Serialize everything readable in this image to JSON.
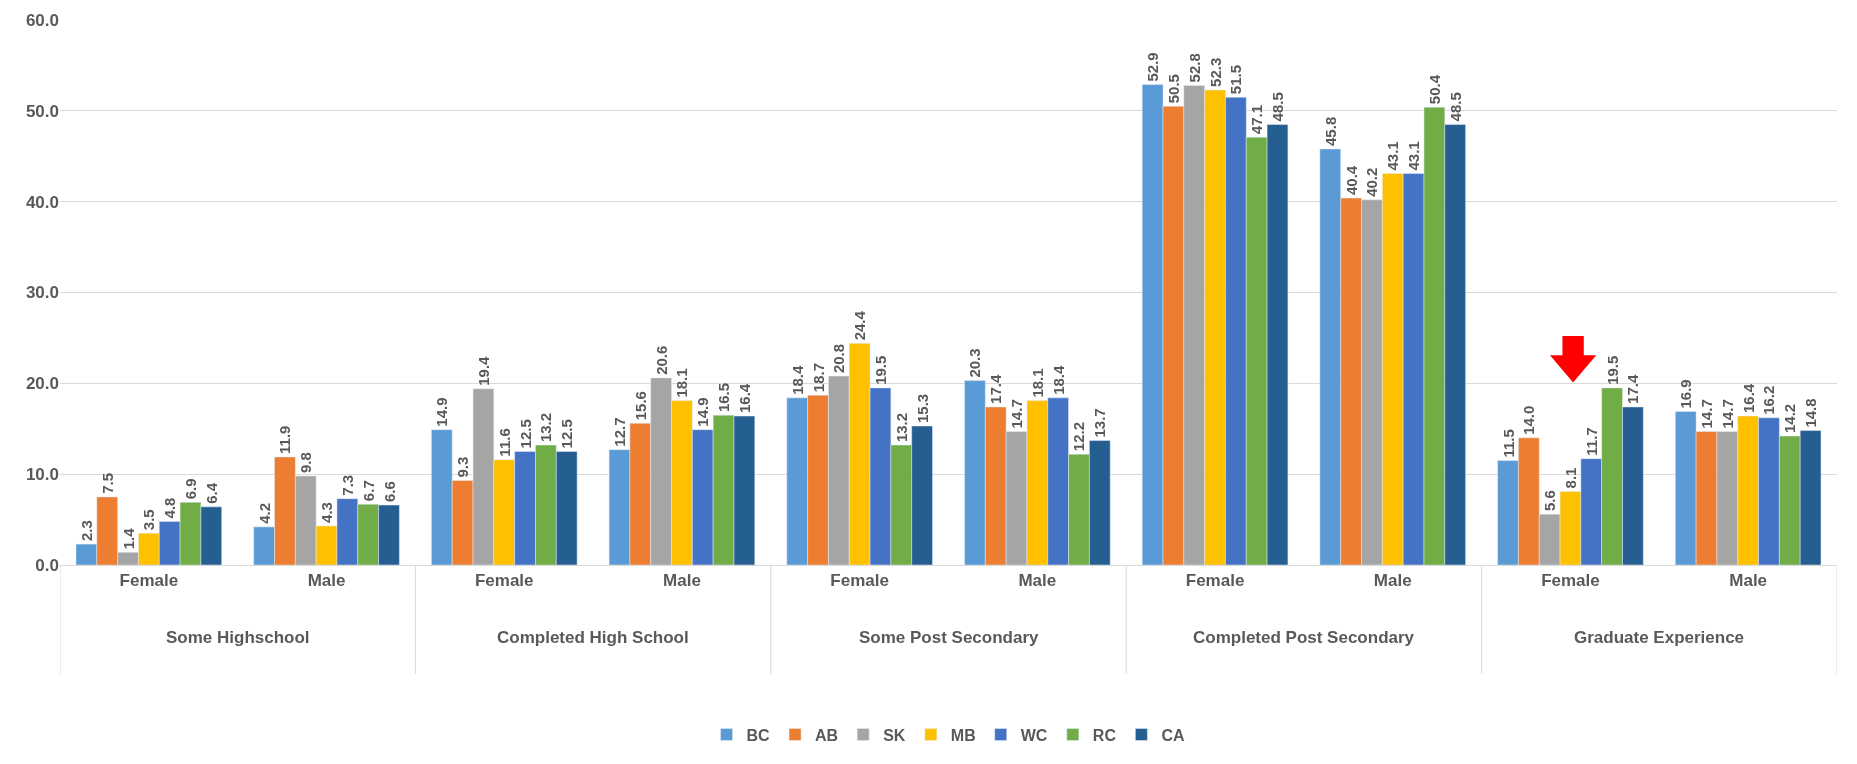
{
  "chart_data": {
    "type": "bar",
    "categories": [
      "Female",
      "Male",
      "Female",
      "Male",
      "Female",
      "Male",
      "Female",
      "Male",
      "Female",
      "Male"
    ],
    "series": [
      {
        "name": "BC",
        "color": "#5b9bd5",
        "values": [
          2.3,
          4.2,
          14.9,
          12.7,
          18.4,
          20.3,
          52.9,
          45.8,
          11.5,
          16.9
        ],
        "value_labels": [
          "2.3",
          "4.2",
          "14.9",
          "12.7",
          "18.4",
          "20.3",
          "52.9",
          "45.8",
          "11.5",
          "16.9"
        ]
      },
      {
        "name": "AB",
        "color": "#ed7d31",
        "values": [
          7.5,
          11.9,
          9.3,
          15.6,
          18.7,
          17.4,
          50.5,
          40.4,
          14.0,
          14.7
        ],
        "value_labels": [
          "7.5",
          "11.9",
          "9.3",
          "15.6",
          "18.7",
          "17.4",
          "50.5",
          "40.4",
          "14.0",
          "14.7"
        ]
      },
      {
        "name": "SK",
        "color": "#a5a5a5",
        "values": [
          1.4,
          9.8,
          19.4,
          20.6,
          20.8,
          14.7,
          52.8,
          40.2,
          5.6,
          14.7
        ],
        "value_labels": [
          "1.4",
          "9.8",
          "19.4",
          "20.6",
          "20.8",
          "14.7",
          "52.8",
          "40.2",
          "5.6",
          "14.7"
        ]
      },
      {
        "name": "MB",
        "color": "#ffc000",
        "values": [
          3.5,
          4.3,
          11.6,
          18.1,
          24.4,
          18.1,
          52.3,
          43.1,
          8.1,
          16.4
        ],
        "value_labels": [
          "3.5",
          "4.3",
          "11.6",
          "18.1",
          "24.4",
          "18.1",
          "52.3",
          "43.1",
          "8.1",
          "16.4"
        ]
      },
      {
        "name": "WC",
        "color": "#4472c4",
        "values": [
          4.8,
          7.3,
          12.5,
          14.9,
          19.5,
          18.4,
          51.5,
          43.1,
          11.7,
          16.2
        ],
        "value_labels": [
          "4.8",
          "7.3",
          "12.5",
          "14.9",
          "19.5",
          "18.4",
          "51.5",
          "43.1",
          "11.7",
          "16.2"
        ]
      },
      {
        "name": "RC",
        "color": "#70ad47",
        "values": [
          6.9,
          6.7,
          13.2,
          16.5,
          13.2,
          12.2,
          47.1,
          50.4,
          19.5,
          14.2
        ],
        "value_labels": [
          "6.9",
          "6.7",
          "13.2",
          "16.5",
          "13.2",
          "12.2",
          "47.1",
          "50.4",
          "19.5",
          "14.2"
        ]
      },
      {
        "name": "CA",
        "color": "#255e91",
        "values": [
          6.4,
          6.6,
          12.5,
          16.4,
          15.3,
          13.7,
          48.5,
          48.5,
          17.4,
          14.8
        ],
        "value_labels": [
          "6.4",
          "6.6",
          "12.5",
          "16.4",
          "15.3",
          "13.7",
          "48.5",
          "48.5",
          "17.4",
          "14.8"
        ]
      }
    ],
    "annotations": [
      "Some Highschool",
      "Completed High School",
      "Some Post Secondary",
      "Completed Post Secondary",
      "Graduate Experience"
    ],
    "ylim": [
      0,
      60
    ],
    "yticks": [
      {
        "value": 0,
        "label": "0.0"
      },
      {
        "value": 10,
        "label": "10.0"
      },
      {
        "value": 20,
        "label": "20.0"
      },
      {
        "value": 30,
        "label": "30.0"
      },
      {
        "value": 40,
        "label": "40.0"
      },
      {
        "value": 50,
        "label": "50.0"
      },
      {
        "value": 60,
        "label": "60.0"
      }
    ],
    "grid": "y",
    "legend": "bottom"
  }
}
